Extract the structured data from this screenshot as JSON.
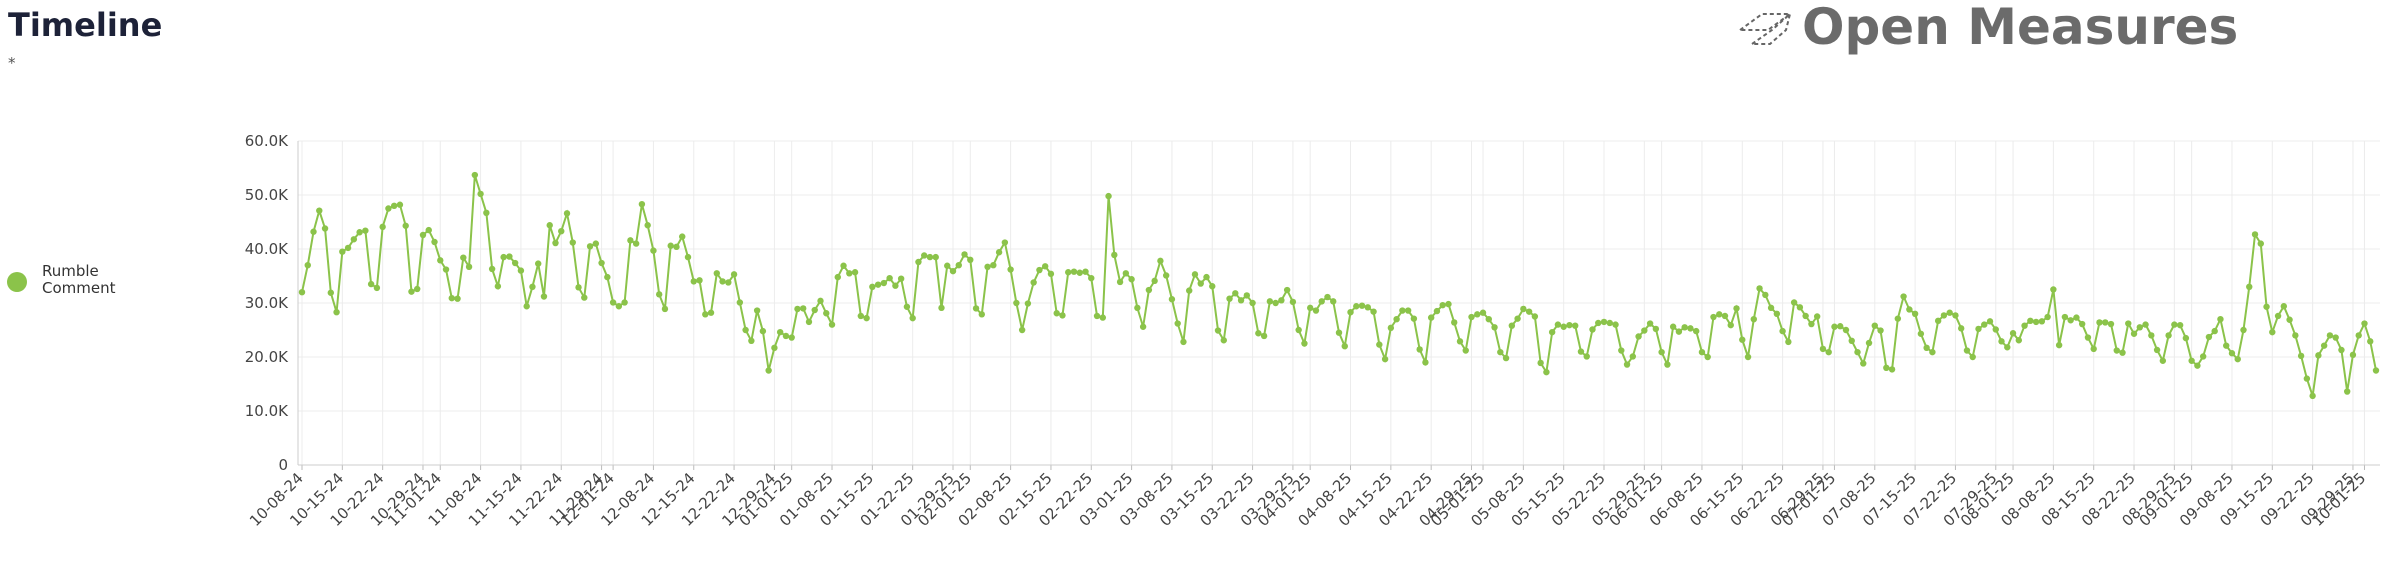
{
  "chart_data": {
    "type": "line",
    "title": "Timeline",
    "subtitle": "*",
    "brand": "Open Measures",
    "x": [
      "10-08-24",
      "10-09-24",
      "10-10-24",
      "10-11-24",
      "10-12-24",
      "10-13-24",
      "10-14-24",
      "10-15-24",
      "10-16-24",
      "10-17-24",
      "10-18-24",
      "10-19-24",
      "10-20-24",
      "10-21-24",
      "10-22-24",
      "10-23-24",
      "10-24-24",
      "10-25-24",
      "10-26-24",
      "10-27-24",
      "10-28-24",
      "10-29-24",
      "10-30-24",
      "10-31-24",
      "11-01-24",
      "11-02-24",
      "11-03-24",
      "11-04-24",
      "11-05-24",
      "11-06-24",
      "11-07-24",
      "11-08-24",
      "11-09-24",
      "11-10-24",
      "11-11-24",
      "11-12-24",
      "11-13-24",
      "11-14-24",
      "11-15-24",
      "11-16-24",
      "11-17-24",
      "11-18-24",
      "11-19-24",
      "11-20-24",
      "11-21-24",
      "11-22-24",
      "11-23-24",
      "11-24-24",
      "11-25-24",
      "11-26-24",
      "11-27-24",
      "11-28-24",
      "11-29-24",
      "11-30-24",
      "12-01-24",
      "12-02-24",
      "12-03-24",
      "12-04-24",
      "12-05-24",
      "12-06-24",
      "12-07-24",
      "12-08-24",
      "12-09-24",
      "12-10-24",
      "12-11-24",
      "12-12-24",
      "12-13-24",
      "12-14-24",
      "12-15-24",
      "12-16-24",
      "12-17-24",
      "12-18-24",
      "12-19-24",
      "12-20-24",
      "12-21-24",
      "12-22-24",
      "12-23-24",
      "12-24-24",
      "12-25-24",
      "12-26-24",
      "12-27-24",
      "12-28-24",
      "12-29-24",
      "12-30-24",
      "12-31-24",
      "01-01-25",
      "01-02-25",
      "01-03-25",
      "01-04-25",
      "01-05-25",
      "01-06-25",
      "01-07-25",
      "01-08-25",
      "01-09-25",
      "01-10-25",
      "01-11-25",
      "01-12-25",
      "01-13-25",
      "01-14-25",
      "01-15-25",
      "01-16-25",
      "01-17-25",
      "01-18-25",
      "01-19-25",
      "01-20-25",
      "01-21-25",
      "01-22-25",
      "01-23-25",
      "01-24-25",
      "01-25-25",
      "01-26-25",
      "01-27-25",
      "01-28-25",
      "01-29-25",
      "01-30-25",
      "01-31-25",
      "02-01-25",
      "02-02-25",
      "02-03-25",
      "02-04-25",
      "02-05-25",
      "02-06-25",
      "02-07-25",
      "02-08-25",
      "02-09-25",
      "02-10-25",
      "02-11-25",
      "02-12-25",
      "02-13-25",
      "02-14-25",
      "02-15-25",
      "02-16-25",
      "02-17-25",
      "02-18-25",
      "02-19-25",
      "02-20-25",
      "02-21-25",
      "02-22-25",
      "02-23-25",
      "02-24-25",
      "02-25-25",
      "02-26-25",
      "02-27-25",
      "02-28-25",
      "03-01-25",
      "03-02-25",
      "03-03-25",
      "03-04-25",
      "03-05-25",
      "03-06-25",
      "03-07-25",
      "03-08-25",
      "03-09-25",
      "03-10-25",
      "03-11-25",
      "03-12-25",
      "03-13-25",
      "03-14-25",
      "03-15-25",
      "03-16-25",
      "03-17-25",
      "03-18-25",
      "03-19-25",
      "03-20-25",
      "03-21-25",
      "03-22-25",
      "03-23-25",
      "03-24-25",
      "03-25-25",
      "03-26-25",
      "03-27-25",
      "03-28-25",
      "03-29-25",
      "03-30-25",
      "03-31-25",
      "04-01-25",
      "04-02-25",
      "04-03-25",
      "04-04-25",
      "04-05-25",
      "04-06-25",
      "04-07-25",
      "04-08-25",
      "04-09-25",
      "04-10-25",
      "04-11-25",
      "04-12-25",
      "04-13-25",
      "04-14-25",
      "04-15-25",
      "04-16-25",
      "04-17-25",
      "04-18-25",
      "04-19-25",
      "04-20-25",
      "04-21-25",
      "04-22-25",
      "04-23-25",
      "04-24-25",
      "04-25-25",
      "04-26-25",
      "04-27-25",
      "04-28-25",
      "04-29-25",
      "04-30-25",
      "05-01-25",
      "05-02-25",
      "05-03-25",
      "05-04-25",
      "05-05-25",
      "05-06-25",
      "05-07-25",
      "05-08-25",
      "05-09-25",
      "05-10-25",
      "05-11-25",
      "05-12-25",
      "05-13-25",
      "05-14-25",
      "05-15-25",
      "05-16-25",
      "05-17-25",
      "05-18-25",
      "05-19-25",
      "05-20-25",
      "05-21-25",
      "05-22-25",
      "05-23-25",
      "05-24-25",
      "05-25-25",
      "05-26-25",
      "05-27-25",
      "05-28-25",
      "05-29-25",
      "05-30-25",
      "05-31-25",
      "06-01-25",
      "06-02-25",
      "06-03-25",
      "06-04-25",
      "06-05-25",
      "06-06-25",
      "06-07-25",
      "06-08-25",
      "06-09-25",
      "06-10-25",
      "06-11-25",
      "06-12-25",
      "06-13-25",
      "06-14-25",
      "06-15-25",
      "06-16-25",
      "06-17-25",
      "06-18-25",
      "06-19-25",
      "06-20-25",
      "06-21-25",
      "06-22-25",
      "06-23-25",
      "06-24-25",
      "06-25-25",
      "06-26-25",
      "06-27-25",
      "06-28-25",
      "06-29-25",
      "06-30-25",
      "07-01-25",
      "07-02-25",
      "07-03-25",
      "07-04-25",
      "07-05-25",
      "07-06-25",
      "07-07-25",
      "07-08-25",
      "07-09-25",
      "07-10-25",
      "07-11-25",
      "07-12-25",
      "07-13-25",
      "07-14-25",
      "07-15-25",
      "07-16-25",
      "07-17-25",
      "07-18-25",
      "07-19-25",
      "07-20-25",
      "07-21-25",
      "07-22-25",
      "07-23-25",
      "07-24-25",
      "07-25-25",
      "07-26-25",
      "07-27-25",
      "07-28-25",
      "07-29-25",
      "07-30-25",
      "07-31-25",
      "08-01-25",
      "08-02-25",
      "08-03-25",
      "08-04-25",
      "08-05-25",
      "08-06-25",
      "08-07-25",
      "08-08-25",
      "08-09-25",
      "08-10-25",
      "08-11-25",
      "08-12-25",
      "08-13-25",
      "08-14-25",
      "08-15-25",
      "08-16-25",
      "08-17-25",
      "08-18-25",
      "08-19-25",
      "08-20-25",
      "08-21-25",
      "08-22-25",
      "08-23-25",
      "08-24-25",
      "08-25-25",
      "08-26-25",
      "08-27-25",
      "08-28-25",
      "08-29-25",
      "08-30-25",
      "08-31-25",
      "09-01-25",
      "09-02-25",
      "09-03-25",
      "09-04-25",
      "09-05-25",
      "09-06-25",
      "09-07-25",
      "09-08-25",
      "09-09-25",
      "09-10-25",
      "09-11-25",
      "09-12-25",
      "09-13-25",
      "09-14-25",
      "09-15-25",
      "09-16-25",
      "09-17-25",
      "09-18-25",
      "09-19-25",
      "09-20-25",
      "09-21-25",
      "09-22-25",
      "09-23-25",
      "09-24-25",
      "09-25-25",
      "09-26-25",
      "09-27-25",
      "09-28-25",
      "09-29-25",
      "09-30-25",
      "10-01-25",
      "10-02-25",
      "10-03-25"
    ],
    "series": [
      {
        "name": "Rumble Comment",
        "color": "#8bc34a",
        "values": [
          32000,
          37000,
          43200,
          47100,
          43800,
          31900,
          28300,
          39500,
          40200,
          41800,
          43100,
          43400,
          33500,
          32800,
          44100,
          47500,
          48000,
          48200,
          44300,
          32100,
          32600,
          42600,
          43500,
          41300,
          37900,
          36200,
          30900,
          30800,
          38400,
          36700,
          53700,
          50200,
          46700,
          36300,
          33100,
          38500,
          38600,
          37400,
          36000,
          29400,
          33000,
          37300,
          31200,
          44400,
          41100,
          43300,
          46600,
          41200,
          32900,
          31000,
          40500,
          41000,
          37400,
          34800,
          30100,
          29400,
          30100,
          41600,
          41000,
          48300,
          44400,
          39700,
          31600,
          28900,
          40600,
          40400,
          42300,
          38500,
          34000,
          34200,
          27900,
          28200,
          35500,
          34000,
          33800,
          35300,
          30100,
          25000,
          23000,
          28600,
          24800,
          17500,
          21700,
          24600,
          23900,
          23600,
          28900,
          29000,
          26500,
          28700,
          30400,
          28100,
          26000,
          34800,
          36900,
          35500,
          35700,
          27600,
          27200,
          33000,
          33400,
          33700,
          34600,
          33200,
          34500,
          29300,
          27200,
          37600,
          38800,
          38500,
          38500,
          29100,
          36900,
          35900,
          37000,
          39000,
          38000,
          29000,
          27900,
          36700,
          37000,
          39400,
          41200,
          36200,
          30000,
          25000,
          29900,
          33800,
          36100,
          36800,
          35400,
          28100,
          27700,
          35700,
          35800,
          35600,
          35800,
          34600,
          27600,
          27300,
          49800,
          38900,
          33900,
          35500,
          34400,
          29100,
          25600,
          32400,
          34100,
          37800,
          35100,
          30700,
          26200,
          22800,
          32300,
          35300,
          33600,
          34800,
          33100,
          24900,
          23100,
          30800,
          31800,
          30500,
          31400,
          30000,
          24400,
          23900,
          30300,
          30000,
          30500,
          32400,
          30200,
          25000,
          22500,
          29100,
          28600,
          30300,
          31100,
          30300,
          24500,
          22000,
          28300,
          29400,
          29500,
          29200,
          28400,
          22300,
          19600,
          25400,
          27000,
          28600,
          28600,
          27100,
          21400,
          19000,
          27300,
          28500,
          29600,
          29800,
          26400,
          22900,
          21200,
          27400,
          27900,
          28200,
          27000,
          25500,
          20900,
          19800,
          25800,
          27100,
          28900,
          28400,
          27500,
          18900,
          17200,
          24600,
          26000,
          25600,
          25900,
          25800,
          21000,
          20100,
          25100,
          26300,
          26500,
          26300,
          26000,
          21200,
          18600,
          20100,
          23800,
          24900,
          26200,
          25200,
          20900,
          18600,
          25600,
          24700,
          25500,
          25300,
          24800,
          20900,
          20000,
          27400,
          27900,
          27600,
          25900,
          29000,
          23200,
          20000,
          27000,
          32700,
          31500,
          29100,
          28000,
          24800,
          22800,
          30100,
          29200,
          27600,
          26100,
          27500,
          21500,
          20900,
          25600,
          25700,
          25000,
          23000,
          20900,
          18800,
          22600,
          25800,
          24900,
          18000,
          17700,
          27100,
          31200,
          28800,
          28000,
          24300,
          21700,
          20900,
          26700,
          27700,
          28200,
          27700,
          25300,
          21200,
          20000,
          25200,
          26000,
          26600,
          25100,
          22900,
          21800,
          24400,
          23100,
          25800,
          26700,
          26500,
          26600,
          27400,
          32500,
          22200,
          27400,
          26800,
          27300,
          26100,
          23600,
          21500,
          26400,
          26400,
          26100,
          21200,
          20800,
          26200,
          24300,
          25500,
          26000,
          24000,
          21300,
          19300,
          24000,
          26000,
          25900,
          23500,
          19300,
          18400,
          20100,
          23700,
          24800,
          27000,
          22100,
          20700,
          19600,
          25000,
          33000,
          42700,
          41000,
          29300,
          24600,
          27600,
          29400,
          26900,
          24000,
          20200,
          16000,
          12800,
          20300,
          22100,
          24000,
          23600,
          21300,
          13600,
          20400,
          24000,
          26200,
          22900,
          17500
        ]
      }
    ],
    "xlim": [
      "10-08-24",
      "10-03-25"
    ],
    "xticks": [
      "10-08-24",
      "10-15-24",
      "10-22-24",
      "10-29-24",
      "11-01-24",
      "11-08-24",
      "11-15-24",
      "11-22-24",
      "11-29-24",
      "12-01-24",
      "12-08-24",
      "12-15-24",
      "12-22-24",
      "12-29-24",
      "01-01-25",
      "01-08-25",
      "01-15-25",
      "01-22-25",
      "01-29-25",
      "02-01-25",
      "02-08-25",
      "02-15-25",
      "02-22-25",
      "03-01-25",
      "03-08-25",
      "03-15-25",
      "03-22-25",
      "03-29-25",
      "04-01-25",
      "04-08-25",
      "04-15-25",
      "04-22-25",
      "04-29-25",
      "05-01-25",
      "05-08-25",
      "05-15-25",
      "05-22-25",
      "05-29-25",
      "06-01-25",
      "06-08-25",
      "06-15-25",
      "06-22-25",
      "06-29-25",
      "07-01-25",
      "07-08-25",
      "07-15-25",
      "07-22-25",
      "07-29-25",
      "08-01-25",
      "08-08-25",
      "08-15-25",
      "08-22-25",
      "08-29-25",
      "09-01-25",
      "09-08-25",
      "09-15-25",
      "09-22-25",
      "09-29-25",
      "10-01-25"
    ],
    "ylim": [
      0,
      60000
    ],
    "yticks": [
      0,
      {
        "value": 10000,
        "label": "10.0K"
      },
      {
        "value": 20000,
        "label": "20.0K"
      },
      {
        "value": 30000,
        "label": "30.0K"
      },
      {
        "value": 40000,
        "label": "40.0K"
      },
      {
        "value": 50000,
        "label": "50.0K"
      },
      {
        "value": 60000,
        "label": "60.0K"
      }
    ],
    "grid": true
  }
}
